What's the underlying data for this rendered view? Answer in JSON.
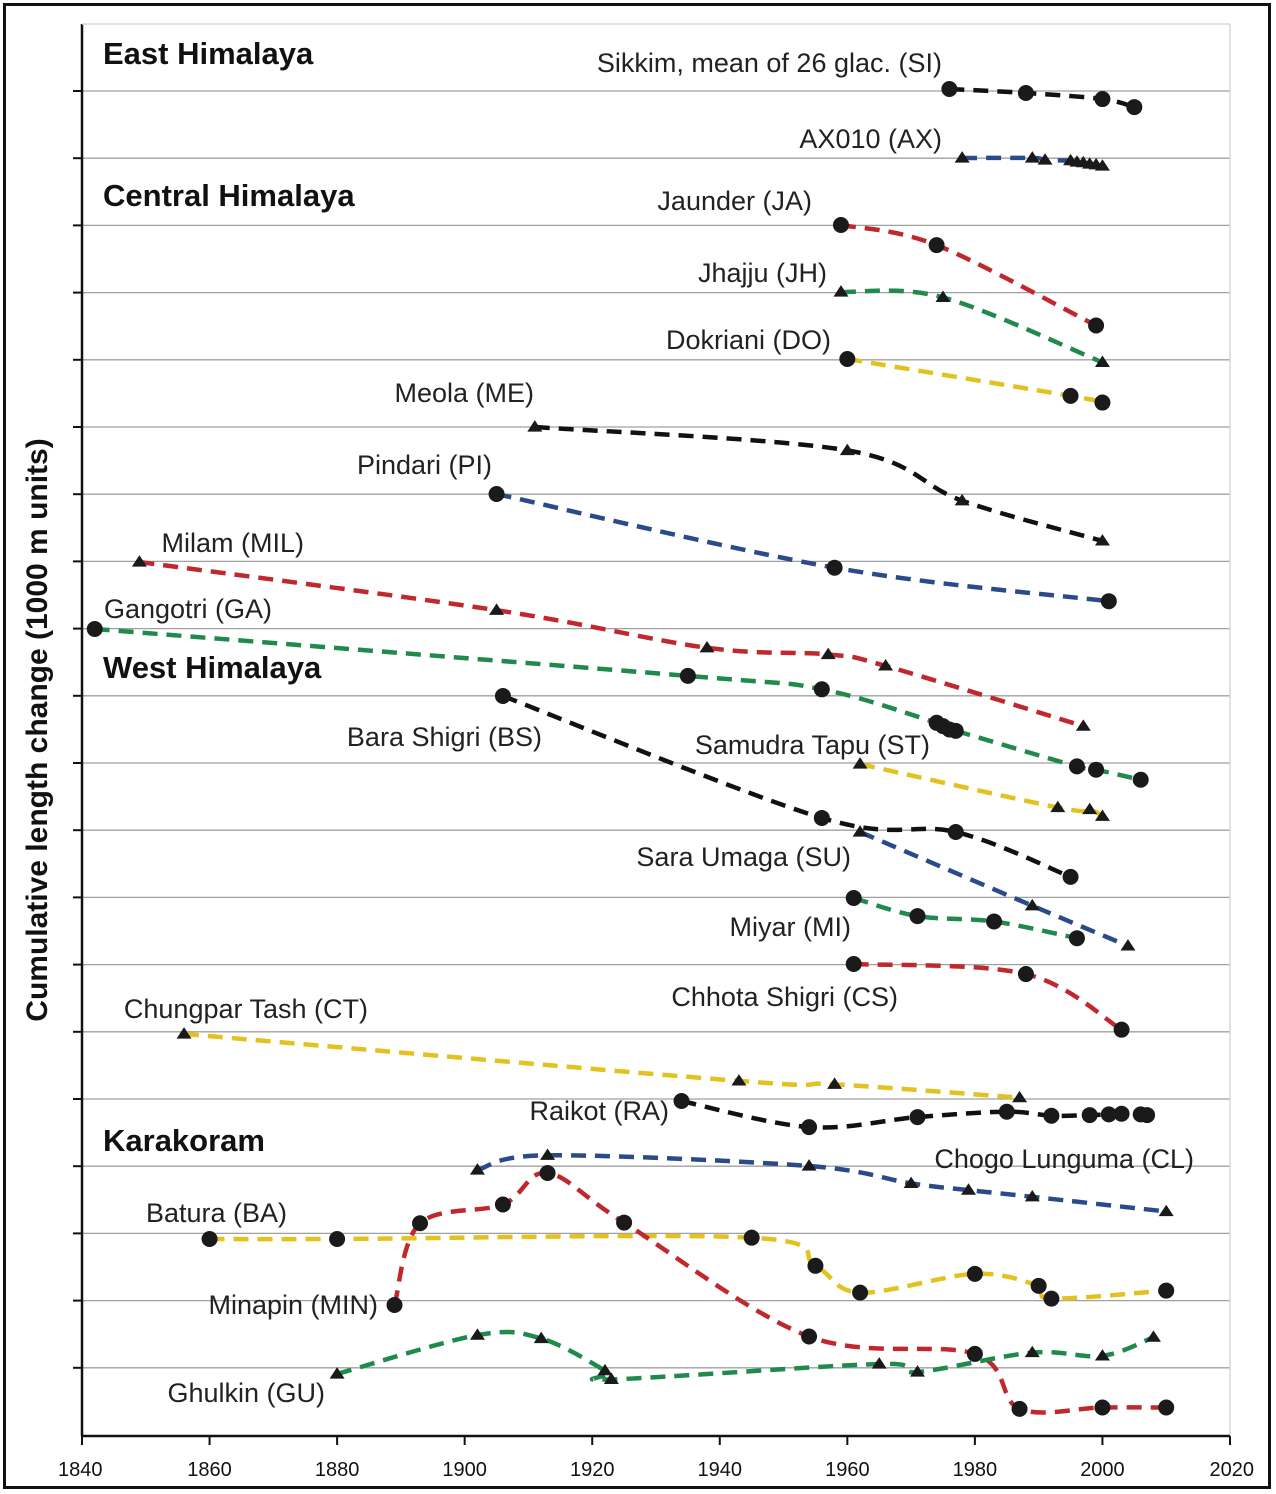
{
  "chart_data": {
    "type": "line",
    "title": "",
    "xlabel": "",
    "ylabel": "Cumulative length change (1000 m units)",
    "xlim": [
      1840,
      2020
    ],
    "xticks": [
      1840,
      1860,
      1880,
      1900,
      1920,
      1940,
      1960,
      1980,
      2000,
      2020
    ],
    "grid": true,
    "regions": [
      {
        "label": "East Himalaya"
      },
      {
        "label": "Central Himalaya"
      },
      {
        "label": "West Himalaya"
      },
      {
        "label": "Karakoram"
      }
    ],
    "series": [
      {
        "name": "Sikkim, mean of 26 glac. (SI)",
        "color": "#111111",
        "marker": "circle",
        "x": [
          1976,
          1988,
          2000,
          2005
        ],
        "y": [
          0,
          -0.06,
          -0.15,
          -0.27
        ]
      },
      {
        "name": "AX010 (AX)",
        "color": "#2b4a8a",
        "marker": "triangle",
        "x": [
          1978,
          1989,
          1991,
          1995,
          1996,
          1997,
          1998,
          1999,
          2000
        ],
        "y": [
          0,
          0,
          -0.03,
          -0.04,
          -0.06,
          -0.07,
          -0.09,
          -0.1,
          -0.12
        ]
      },
      {
        "name": "Jaunder (JA)",
        "color": "#c0282d",
        "marker": "circle",
        "x": [
          1959,
          1974,
          1999
        ],
        "y": [
          0,
          -0.3,
          -1.5
        ]
      },
      {
        "name": "Jhajju (JH)",
        "color": "#1f8a4c",
        "marker": "triangle",
        "x": [
          1959,
          1975,
          2000
        ],
        "y": [
          0,
          -0.08,
          -1.05
        ]
      },
      {
        "name": "Dokriani (DO)",
        "color": "#e3c11f",
        "marker": "circle",
        "x": [
          1960,
          1995,
          2000
        ],
        "y": [
          0,
          -0.55,
          -0.65
        ]
      },
      {
        "name": "Meola (ME)",
        "color": "#111111",
        "marker": "triangle",
        "x": [
          1911,
          1960,
          1978,
          2000
        ],
        "y": [
          0,
          -0.35,
          -1.1,
          -1.7
        ]
      },
      {
        "name": "Pindari (PI)",
        "color": "#2b4a8a",
        "marker": "circle",
        "x": [
          1905,
          1958,
          2001
        ],
        "y": [
          0,
          -1.1,
          -1.6
        ]
      },
      {
        "name": "Milam (MIL)",
        "color": "#c0282d",
        "marker": "triangle",
        "x": [
          1849,
          1905,
          1938,
          1957,
          1966,
          1997
        ],
        "y": [
          0,
          -0.72,
          -1.28,
          -1.38,
          -1.55,
          -2.45
        ]
      },
      {
        "name": "Gangotri (GA)",
        "color": "#1f8a4c",
        "marker": "circle",
        "x": [
          1842,
          1935,
          1956,
          1974,
          1975,
          1976,
          1977,
          1996,
          1999,
          2006
        ],
        "y": [
          0,
          -0.7,
          -0.9,
          -1.4,
          -1.45,
          -1.5,
          -1.52,
          -2.05,
          -2.1,
          -2.25
        ]
      },
      {
        "name": "Bara Shigri (BS)",
        "color": "#111111",
        "marker": "circle",
        "x": [
          1906,
          1956,
          1977,
          1995
        ],
        "y": [
          0,
          -1.82,
          -2.03,
          -2.7
        ]
      },
      {
        "name": "Samudra Tapu (ST)",
        "color": "#e3c11f",
        "marker": "triangle",
        "x": [
          1962,
          1993,
          1998,
          2000
        ],
        "y": [
          0,
          -0.65,
          -0.68,
          -0.78
        ]
      },
      {
        "name": "Sara Umaga (SU)",
        "color": "#2b4a8a",
        "marker": "triangle",
        "x": [
          1962,
          1989,
          2004
        ],
        "y": [
          0,
          -1.1,
          -1.7
        ]
      },
      {
        "name": "Miyar (MI)",
        "color": "#1f8a4c",
        "marker": "circle",
        "x": [
          1961,
          1971,
          1983,
          1996
        ],
        "y": [
          0,
          -0.27,
          -0.35,
          -0.6
        ]
      },
      {
        "name": "Chhota Shigri (CS)",
        "color": "#c0282d",
        "marker": "circle",
        "x": [
          1961,
          1988,
          2003
        ],
        "y": [
          0,
          -0.15,
          -0.98
        ]
      },
      {
        "name": "Chungpar Tash (CT)",
        "color": "#e3c11f",
        "marker": "triangle",
        "x": [
          1856,
          1943,
          1958,
          1987
        ],
        "y": [
          0,
          -0.7,
          -0.75,
          -0.95
        ]
      },
      {
        "name": "Raikot (RA)",
        "color": "#111111",
        "marker": "circle",
        "x": [
          1934,
          1954,
          1971,
          1985,
          1992,
          1998,
          2001,
          2003,
          2006,
          2007
        ],
        "y": [
          0,
          -0.39,
          -0.24,
          -0.16,
          -0.22,
          -0.21,
          -0.2,
          -0.19,
          -0.2,
          -0.21
        ]
      },
      {
        "name": "Chogo Lunguma (CL)",
        "color": "#2b4a8a",
        "marker": "triangle",
        "x": [
          1902,
          1913,
          1954,
          1970,
          1979,
          1989,
          2010
        ],
        "y": [
          0,
          0.22,
          0.06,
          -0.2,
          -0.3,
          -0.4,
          -0.62
        ]
      },
      {
        "name": "Batura (BA)",
        "color": "#e3c11f",
        "marker": "circle",
        "x": [
          1860,
          1880,
          1945,
          1955,
          1962,
          1980,
          1990,
          1992,
          2010
        ],
        "y": [
          0,
          0,
          0.02,
          -0.4,
          -0.8,
          -0.52,
          -0.7,
          -0.89,
          -0.77
        ]
      },
      {
        "name": "Minapin (MIN)",
        "color": "#c0282d",
        "marker": "circle",
        "x": [
          1889,
          1893,
          1906,
          1913,
          1925,
          1954,
          1980,
          1987,
          2000,
          2010
        ],
        "y": [
          0,
          1.22,
          1.5,
          1.97,
          1.23,
          -0.47,
          -0.73,
          -1.55,
          -1.53,
          -1.53
        ]
      },
      {
        "name": "Ghulkin (GU)",
        "color": "#1f8a4c",
        "marker": "triangle",
        "x": [
          1880,
          1902,
          1912,
          1922,
          1923,
          1965,
          1971,
          1989,
          2000,
          2008
        ],
        "y": [
          0,
          0.58,
          0.53,
          0.05,
          -0.08,
          0.15,
          0.03,
          0.32,
          0.27,
          0.55
        ]
      }
    ]
  }
}
